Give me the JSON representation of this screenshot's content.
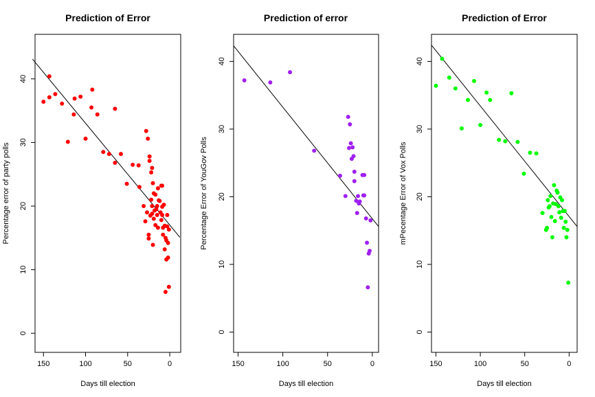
{
  "chart_data": [
    {
      "type": "scatter",
      "title": "Prediction of Error",
      "xlabel": "Days till election",
      "ylabel": "Percentage error of party polls",
      "xlim": [
        160,
        -13
      ],
      "ylim": [
        -3,
        47
      ],
      "x_reversed": true,
      "x_ticks": [
        150,
        100,
        50,
        0
      ],
      "y_ticks": [
        0,
        10,
        20,
        30,
        40
      ],
      "grid": false,
      "point_color": "#ff0000",
      "line_color": "#000000",
      "trend_line": {
        "x": [
          163,
          -12
        ],
        "y": [
          43.1,
          15.1
        ]
      },
      "points": [
        [
          150,
          36.4
        ],
        [
          143,
          40.4
        ],
        [
          143,
          37.1
        ],
        [
          136,
          37.6
        ],
        [
          128,
          36.1
        ],
        [
          121,
          30.1
        ],
        [
          114,
          34.4
        ],
        [
          113,
          36.9
        ],
        [
          106,
          37.2
        ],
        [
          100,
          30.6
        ],
        [
          93,
          35.5
        ],
        [
          92,
          38.3
        ],
        [
          86,
          34.4
        ],
        [
          79,
          28.5
        ],
        [
          72,
          28.2
        ],
        [
          65,
          26.8
        ],
        [
          65,
          35.3
        ],
        [
          58,
          28.2
        ],
        [
          51,
          23.5
        ],
        [
          44,
          26.5
        ],
        [
          37,
          26.4
        ],
        [
          36,
          23.0
        ],
        [
          31,
          20.0
        ],
        [
          29,
          17.6
        ],
        [
          28,
          31.8
        ],
        [
          27,
          19.0
        ],
        [
          26,
          30.6
        ],
        [
          25,
          14.9
        ],
        [
          25,
          15.5
        ],
        [
          24,
          27.1
        ],
        [
          24,
          27.8
        ],
        [
          23,
          18.5
        ],
        [
          22,
          25.3
        ],
        [
          22,
          21.0
        ],
        [
          21,
          26.0
        ],
        [
          21,
          20.0
        ],
        [
          21,
          18.8
        ],
        [
          20,
          23.6
        ],
        [
          20,
          13.9
        ],
        [
          19,
          22.0
        ],
        [
          19,
          18.0
        ],
        [
          18,
          19.3
        ],
        [
          17,
          21.8
        ],
        [
          17,
          17.0
        ],
        [
          16,
          19.5
        ],
        [
          15,
          20.0
        ],
        [
          15,
          18.6
        ],
        [
          14,
          16.6
        ],
        [
          14,
          22.8
        ],
        [
          13,
          20.9
        ],
        [
          12,
          20.8
        ],
        [
          11,
          19.0
        ],
        [
          10,
          17.8
        ],
        [
          10,
          23.2
        ],
        [
          9,
          23.2
        ],
        [
          9,
          18.6
        ],
        [
          9,
          19.9
        ],
        [
          8,
          16.6
        ],
        [
          8,
          15.5
        ],
        [
          7,
          20.2
        ],
        [
          6,
          16.9
        ],
        [
          6,
          13.2
        ],
        [
          5,
          15.0
        ],
        [
          5,
          6.5
        ],
        [
          4,
          14.6
        ],
        [
          4,
          11.6
        ],
        [
          3,
          16.8
        ],
        [
          3,
          18.6
        ],
        [
          2,
          11.9
        ],
        [
          2,
          14.2
        ],
        [
          1,
          7.3
        ],
        [
          1,
          16.3
        ]
      ]
    },
    {
      "type": "scatter",
      "title": "Prediction of error",
      "xlabel": "Days till election",
      "ylabel": "Percentage Error of YouGov Polls",
      "xlim": [
        155,
        -7
      ],
      "ylim": [
        -3,
        44
      ],
      "x_reversed": true,
      "x_ticks": [
        150,
        100,
        50,
        0
      ],
      "y_ticks": [
        0,
        10,
        20,
        30,
        40
      ],
      "grid": false,
      "point_color": "#a020f0",
      "line_color": "#000000",
      "trend_line": {
        "x": [
          155,
          -7
        ],
        "y": [
          42.3,
          15.6
        ]
      },
      "points": [
        [
          143,
          37.2
        ],
        [
          114,
          36.9
        ],
        [
          92,
          38.4
        ],
        [
          65,
          26.8
        ],
        [
          36,
          23.1
        ],
        [
          30,
          20.1
        ],
        [
          27,
          31.8
        ],
        [
          25,
          30.7
        ],
        [
          26,
          27.2
        ],
        [
          24,
          27.9
        ],
        [
          23,
          25.6
        ],
        [
          22,
          27.3
        ],
        [
          21,
          26.0
        ],
        [
          20,
          23.7
        ],
        [
          20,
          22.3
        ],
        [
          18,
          19.4
        ],
        [
          17,
          17.6
        ],
        [
          16,
          20.1
        ],
        [
          15,
          19.0
        ],
        [
          14,
          19.3
        ],
        [
          11,
          23.2
        ],
        [
          10,
          20.2
        ],
        [
          9,
          23.2
        ],
        [
          9,
          20.2
        ],
        [
          7,
          16.8
        ],
        [
          6,
          13.2
        ],
        [
          5,
          6.6
        ],
        [
          4,
          11.6
        ],
        [
          3,
          12.0
        ],
        [
          2,
          16.5
        ]
      ]
    },
    {
      "type": "scatter",
      "title": "Prediction of Error",
      "xlabel": "Days till election",
      "ylabel": "mPecentage Error of Vox Polls",
      "xlim": [
        155,
        -9
      ],
      "ylim": [
        -3,
        44
      ],
      "x_reversed": true,
      "x_ticks": [
        150,
        100,
        50,
        0
      ],
      "y_ticks": [
        0,
        10,
        20,
        30,
        40
      ],
      "grid": false,
      "point_color": "#00ff00",
      "line_color": "#000000",
      "trend_line": {
        "x": [
          155,
          -9
        ],
        "y": [
          42.4,
          15.6
        ]
      },
      "points": [
        [
          150,
          36.4
        ],
        [
          143,
          40.4
        ],
        [
          135,
          37.6
        ],
        [
          128,
          36.0
        ],
        [
          121,
          30.1
        ],
        [
          114,
          34.3
        ],
        [
          107,
          37.1
        ],
        [
          100,
          30.6
        ],
        [
          93,
          35.4
        ],
        [
          89,
          34.3
        ],
        [
          79,
          28.4
        ],
        [
          72,
          28.2
        ],
        [
          65,
          35.3
        ],
        [
          58,
          28.1
        ],
        [
          51,
          23.4
        ],
        [
          44,
          26.5
        ],
        [
          37,
          26.4
        ],
        [
          30,
          17.6
        ],
        [
          26,
          15.1
        ],
        [
          25,
          15.4
        ],
        [
          24,
          19.5
        ],
        [
          23,
          18.4
        ],
        [
          22,
          18.6
        ],
        [
          21,
          20.1
        ],
        [
          20,
          17.0
        ],
        [
          19,
          14.0
        ],
        [
          18,
          19.0
        ],
        [
          17,
          21.7
        ],
        [
          16,
          16.4
        ],
        [
          15,
          18.9
        ],
        [
          14,
          20.9
        ],
        [
          13,
          20.6
        ],
        [
          12,
          18.6
        ],
        [
          11,
          17.7
        ],
        [
          10,
          19.9
        ],
        [
          9,
          16.9
        ],
        [
          8,
          19.5
        ],
        [
          7,
          17.9
        ],
        [
          6,
          15.4
        ],
        [
          5,
          17.9
        ],
        [
          4,
          16.3
        ],
        [
          3,
          14.0
        ],
        [
          2,
          15.1
        ],
        [
          1,
          7.3
        ]
      ]
    }
  ]
}
